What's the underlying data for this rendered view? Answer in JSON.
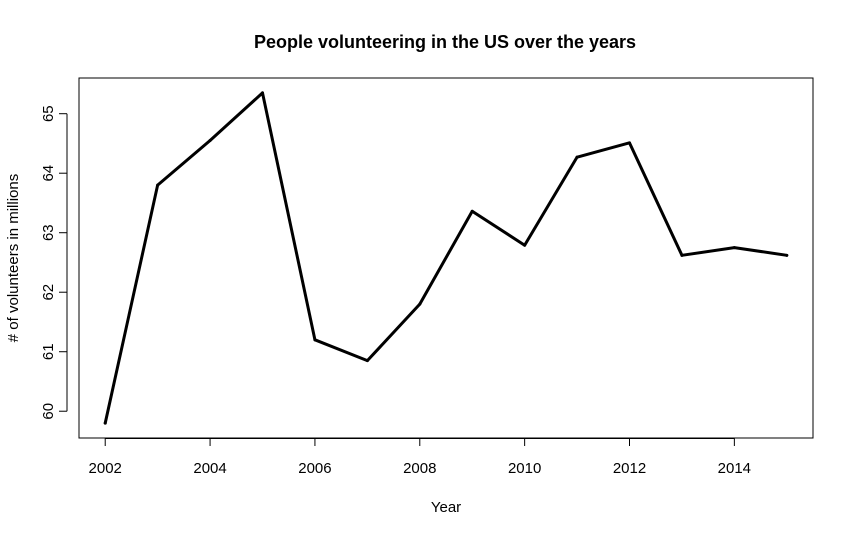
{
  "chart_data": {
    "type": "line",
    "title": "People volunteering in the US over the years",
    "xlabel": "Year",
    "ylabel": "# of volunteers in millions",
    "xlim": [
      2001.5,
      2015.5
    ],
    "ylim": [
      59.55,
      65.6
    ],
    "xticks": [
      2002,
      2004,
      2006,
      2008,
      2010,
      2012,
      2014
    ],
    "yticks": [
      60,
      61,
      62,
      63,
      64,
      65
    ],
    "grid": false,
    "line_color": "#000000",
    "series": [
      {
        "x": [
          2002,
          2003,
          2004,
          2005,
          2006,
          2007,
          2008,
          2009,
          2010,
          2011,
          2012,
          2013,
          2014,
          2015
        ],
        "values": [
          59.8,
          63.8,
          64.55,
          65.35,
          61.2,
          60.85,
          61.8,
          63.36,
          62.79,
          64.27,
          64.51,
          62.62,
          62.75,
          62.62
        ]
      }
    ]
  }
}
